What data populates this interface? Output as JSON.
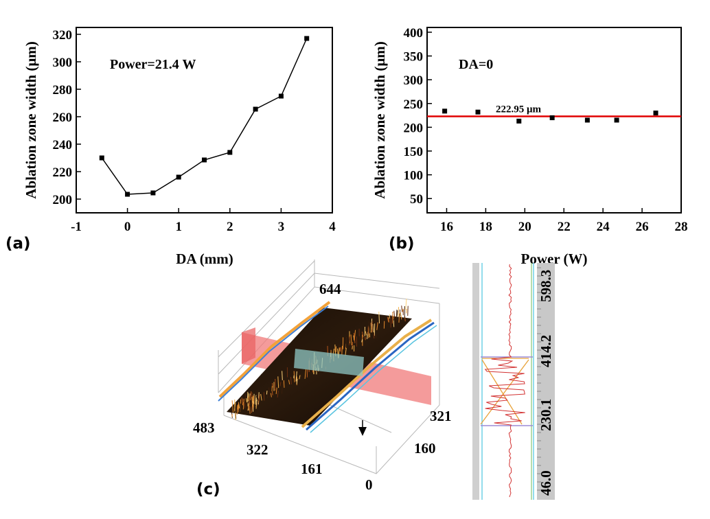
{
  "chart_data": [
    {
      "id": "a",
      "type": "line",
      "panel_label": "(a)",
      "annotation": "Power=21.4 W",
      "xlabel": "DA (mm)",
      "ylabel": "Ablation zone width (μm)",
      "xlim": [
        -1,
        4
      ],
      "ylim": [
        190,
        325
      ],
      "xticks": [
        -1,
        0,
        1,
        2,
        3,
        4
      ],
      "yticks": [
        200,
        220,
        240,
        260,
        280,
        300,
        320
      ],
      "x": [
        -0.5,
        0,
        0.5,
        1,
        1.5,
        2,
        2.5,
        3,
        3.5
      ],
      "y": [
        230,
        203.5,
        204.5,
        216,
        228.5,
        234,
        265.5,
        275,
        317
      ],
      "grid": false
    },
    {
      "id": "b",
      "type": "scatter",
      "panel_label": "(b)",
      "annotation": "DA=0",
      "xlabel": "Power (W)",
      "ylabel": "Ablation zone width (μm)",
      "xlim": [
        15,
        28
      ],
      "ylim": [
        20,
        410
      ],
      "xticks": [
        16,
        18,
        20,
        22,
        24,
        26,
        28
      ],
      "yticks": [
        50,
        100,
        150,
        200,
        250,
        300,
        350,
        400
      ],
      "x": [
        15.9,
        17.6,
        19.7,
        21.4,
        23.2,
        24.7,
        26.7
      ],
      "y": [
        234,
        232,
        213,
        220,
        215,
        215,
        230
      ],
      "reference_line": {
        "value": 222.95,
        "label": "222.95 μm",
        "color": "#e00000"
      },
      "grid": false
    }
  ],
  "panel_c": {
    "panel_label": "(c)",
    "axis_labels_3d": [
      "644",
      "483",
      "322",
      "161",
      "321",
      "160",
      "0"
    ],
    "profile_labels": [
      "598.3",
      "414.2",
      "230.1",
      "46.0"
    ]
  },
  "colors": {
    "line": "#000000",
    "reference": "#e00000",
    "plane": "#f07a7a",
    "profile": "#d23030"
  }
}
